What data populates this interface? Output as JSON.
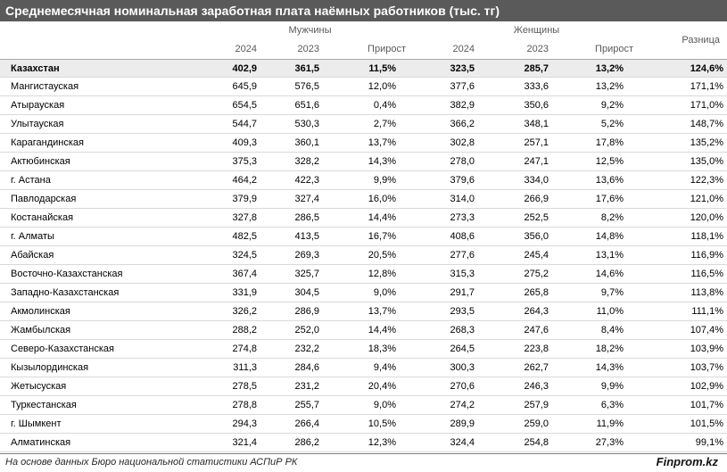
{
  "header": {
    "title": "Среднемесячная номинальная заработная плата наёмных работников (тыс. тг)",
    "men_label": "Мужчины",
    "women_label": "Женщины",
    "diff_label": "Разница",
    "y2024": "2024",
    "y2023": "2023",
    "growth": "Прирост"
  },
  "footer": {
    "source": "На основе данных Бюро национальной статистики АСПиР РК",
    "brand": "Finprom.kz"
  },
  "chart_data": {
    "type": "table",
    "title": "Среднемесячная номинальная заработная плата наёмных работников (тыс. тг)",
    "columns": [
      "",
      "Мужчины 2024",
      "Мужчины 2023",
      "Мужчины Прирост",
      "Женщины 2024",
      "Женщины 2023",
      "Женщины Прирост",
      "Разница"
    ],
    "rows": [
      [
        "Казахстан",
        "402,9",
        "361,5",
        "11,5%",
        "323,5",
        "285,7",
        "13,2%",
        "124,6%"
      ],
      [
        "Мангистауская",
        "645,9",
        "576,5",
        "12,0%",
        "377,6",
        "333,6",
        "13,2%",
        "171,1%"
      ],
      [
        "Атырауская",
        "654,5",
        "651,6",
        "0,4%",
        "382,9",
        "350,6",
        "9,2%",
        "171,0%"
      ],
      [
        "Улытауская",
        "544,7",
        "530,3",
        "2,7%",
        "366,2",
        "348,1",
        "5,2%",
        "148,7%"
      ],
      [
        "Карагандинская",
        "409,3",
        "360,1",
        "13,7%",
        "302,8",
        "257,1",
        "17,8%",
        "135,2%"
      ],
      [
        "Актюбинская",
        "375,3",
        "328,2",
        "14,3%",
        "278,0",
        "247,1",
        "12,5%",
        "135,0%"
      ],
      [
        "г. Астана",
        "464,2",
        "422,3",
        "9,9%",
        "379,6",
        "334,0",
        "13,6%",
        "122,3%"
      ],
      [
        "Павлодарская",
        "379,9",
        "327,4",
        "16,0%",
        "314,0",
        "266,9",
        "17,6%",
        "121,0%"
      ],
      [
        "Костанайская",
        "327,8",
        "286,5",
        "14,4%",
        "273,3",
        "252,5",
        "8,2%",
        "120,0%"
      ],
      [
        "г. Алматы",
        "482,5",
        "413,5",
        "16,7%",
        "408,6",
        "356,0",
        "14,8%",
        "118,1%"
      ],
      [
        "Абайская",
        "324,5",
        "269,3",
        "20,5%",
        "277,6",
        "245,4",
        "13,1%",
        "116,9%"
      ],
      [
        "Восточно-Казахстанская",
        "367,4",
        "325,7",
        "12,8%",
        "315,3",
        "275,2",
        "14,6%",
        "116,5%"
      ],
      [
        "Западно-Казахстанская",
        "331,9",
        "304,5",
        "9,0%",
        "291,7",
        "265,8",
        "9,7%",
        "113,8%"
      ],
      [
        "Акмолинская",
        "326,2",
        "286,9",
        "13,7%",
        "293,5",
        "264,3",
        "11,0%",
        "111,1%"
      ],
      [
        "Жамбылская",
        "288,2",
        "252,0",
        "14,4%",
        "268,3",
        "247,6",
        "8,4%",
        "107,4%"
      ],
      [
        "Северо-Казахстанская",
        "274,8",
        "232,2",
        "18,3%",
        "264,5",
        "223,8",
        "18,2%",
        "103,9%"
      ],
      [
        "Кызылординская",
        "311,3",
        "284,6",
        "9,4%",
        "300,3",
        "262,7",
        "14,3%",
        "103,7%"
      ],
      [
        "Жетысуская",
        "278,5",
        "231,2",
        "20,4%",
        "270,6",
        "246,3",
        "9,9%",
        "102,9%"
      ],
      [
        "Туркестанская",
        "278,8",
        "255,7",
        "9,0%",
        "274,2",
        "257,9",
        "6,3%",
        "101,7%"
      ],
      [
        "г. Шымкент",
        "294,3",
        "266,4",
        "10,5%",
        "289,9",
        "259,0",
        "11,9%",
        "101,5%"
      ],
      [
        "Алматинская",
        "321,4",
        "286,2",
        "12,3%",
        "324,4",
        "254,8",
        "27,3%",
        "99,1%"
      ]
    ]
  }
}
